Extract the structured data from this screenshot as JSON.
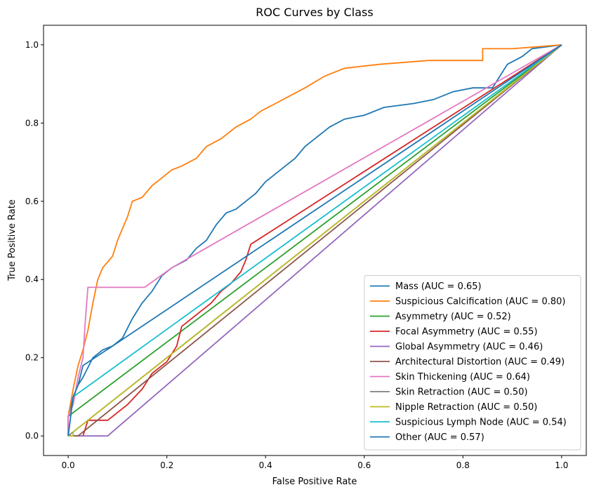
{
  "chart_data": {
    "type": "line",
    "title": "ROC Curves by Class",
    "xlabel": "False Positive Rate",
    "ylabel": "True Positive Rate",
    "xlim": [
      -0.05,
      1.05
    ],
    "ylim": [
      -0.05,
      1.05
    ],
    "xticks": [
      "0.0",
      "0.2",
      "0.4",
      "0.6",
      "0.8",
      "1.0"
    ],
    "yticks": [
      "0.0",
      "0.2",
      "0.4",
      "0.6",
      "0.8",
      "1.0"
    ],
    "grid": false,
    "legend_position": "lower-right",
    "series": [
      {
        "name": "Mass (AUC = 0.65)",
        "color": "#1f77b4",
        "points": [
          [
            0,
            0
          ],
          [
            0,
            0.05
          ],
          [
            0.01,
            0.1
          ],
          [
            0.02,
            0.13
          ],
          [
            0.03,
            0.15
          ],
          [
            0.05,
            0.2
          ],
          [
            0.07,
            0.22
          ],
          [
            0.09,
            0.23
          ],
          [
            0.11,
            0.25
          ],
          [
            0.13,
            0.3
          ],
          [
            0.15,
            0.34
          ],
          [
            0.17,
            0.37
          ],
          [
            0.19,
            0.41
          ],
          [
            0.21,
            0.43
          ],
          [
            0.24,
            0.45
          ],
          [
            0.26,
            0.48
          ],
          [
            0.28,
            0.5
          ],
          [
            0.3,
            0.54
          ],
          [
            0.32,
            0.57
          ],
          [
            0.34,
            0.58
          ],
          [
            0.36,
            0.6
          ],
          [
            0.38,
            0.62
          ],
          [
            0.4,
            0.65
          ],
          [
            0.42,
            0.67
          ],
          [
            0.44,
            0.69
          ],
          [
            0.46,
            0.71
          ],
          [
            0.48,
            0.74
          ],
          [
            0.5,
            0.76
          ],
          [
            0.53,
            0.79
          ],
          [
            0.56,
            0.81
          ],
          [
            0.6,
            0.82
          ],
          [
            0.64,
            0.84
          ],
          [
            0.7,
            0.85
          ],
          [
            0.74,
            0.86
          ],
          [
            0.78,
            0.88
          ],
          [
            0.82,
            0.89
          ],
          [
            0.86,
            0.89
          ],
          [
            0.87,
            0.91
          ],
          [
            0.89,
            0.95
          ],
          [
            0.92,
            0.97
          ],
          [
            0.94,
            0.99
          ],
          [
            1,
            1
          ]
        ]
      },
      {
        "name": "Suspicious Calcification (AUC = 0.80)",
        "color": "#ff7f0e",
        "points": [
          [
            0,
            0
          ],
          [
            0,
            0.05
          ],
          [
            0.01,
            0.12
          ],
          [
            0.02,
            0.18
          ],
          [
            0.03,
            0.22
          ],
          [
            0.04,
            0.27
          ],
          [
            0.05,
            0.34
          ],
          [
            0.06,
            0.4
          ],
          [
            0.07,
            0.43
          ],
          [
            0.09,
            0.46
          ],
          [
            0.1,
            0.5
          ],
          [
            0.11,
            0.53
          ],
          [
            0.12,
            0.56
          ],
          [
            0.13,
            0.6
          ],
          [
            0.15,
            0.61
          ],
          [
            0.17,
            0.64
          ],
          [
            0.19,
            0.66
          ],
          [
            0.21,
            0.68
          ],
          [
            0.23,
            0.69
          ],
          [
            0.26,
            0.71
          ],
          [
            0.28,
            0.74
          ],
          [
            0.31,
            0.76
          ],
          [
            0.34,
            0.79
          ],
          [
            0.37,
            0.81
          ],
          [
            0.39,
            0.83
          ],
          [
            0.42,
            0.85
          ],
          [
            0.45,
            0.87
          ],
          [
            0.48,
            0.89
          ],
          [
            0.52,
            0.92
          ],
          [
            0.56,
            0.94
          ],
          [
            0.63,
            0.95
          ],
          [
            0.73,
            0.96
          ],
          [
            0.84,
            0.96
          ],
          [
            0.84,
            0.99
          ],
          [
            0.9,
            0.99
          ],
          [
            1,
            1
          ]
        ]
      },
      {
        "name": "Asymmetry (AUC = 0.52)",
        "color": "#2ca02c",
        "points": [
          [
            0,
            0
          ],
          [
            0,
            0.05
          ],
          [
            1,
            1
          ]
        ]
      },
      {
        "name": "Focal Asymmetry (AUC = 0.55)",
        "color": "#d62728",
        "points": [
          [
            0,
            0
          ],
          [
            0.03,
            0
          ],
          [
            0.04,
            0.04
          ],
          [
            0.08,
            0.04
          ],
          [
            0.1,
            0.06
          ],
          [
            0.12,
            0.08
          ],
          [
            0.15,
            0.12
          ],
          [
            0.17,
            0.16
          ],
          [
            0.2,
            0.19
          ],
          [
            0.22,
            0.23
          ],
          [
            0.23,
            0.28
          ],
          [
            0.25,
            0.3
          ],
          [
            0.27,
            0.32
          ],
          [
            0.29,
            0.34
          ],
          [
            0.31,
            0.37
          ],
          [
            0.33,
            0.39
          ],
          [
            0.35,
            0.42
          ],
          [
            0.36,
            0.45
          ],
          [
            0.37,
            0.49
          ],
          [
            1,
            1
          ]
        ]
      },
      {
        "name": "Global Asymmetry (AUC = 0.46)",
        "color": "#9467bd",
        "points": [
          [
            0,
            0
          ],
          [
            0.08,
            0
          ],
          [
            1,
            1
          ]
        ]
      },
      {
        "name": "Architectural Distortion (AUC = 0.49)",
        "color": "#8c564b",
        "points": [
          [
            0,
            0
          ],
          [
            0.02,
            0
          ],
          [
            1,
            1
          ]
        ]
      },
      {
        "name": "Skin Thickening (AUC = 0.64)",
        "color": "#e377c2",
        "points": [
          [
            0,
            0
          ],
          [
            0,
            0.05
          ],
          [
            0.01,
            0.08
          ],
          [
            0.02,
            0.15
          ],
          [
            0.03,
            0.2
          ],
          [
            0.035,
            0.3
          ],
          [
            0.04,
            0.38
          ],
          [
            0.155,
            0.38
          ],
          [
            0.21,
            0.43
          ],
          [
            1,
            1
          ]
        ]
      },
      {
        "name": "Skin Retraction (AUC = 0.50)",
        "color": "#7f7f7f",
        "points": [
          [
            0,
            0
          ],
          [
            1,
            1
          ]
        ]
      },
      {
        "name": "Nipple Retraction (AUC = 0.50)",
        "color": "#bcbd22",
        "points": [
          [
            0,
            0
          ],
          [
            0.01,
            0
          ],
          [
            0.01,
            0.01
          ],
          [
            1,
            1
          ]
        ]
      },
      {
        "name": "Suspicious Lymph Node (AUC = 0.54)",
        "color": "#17becf",
        "points": [
          [
            0,
            0
          ],
          [
            0.01,
            0.1
          ],
          [
            1,
            1
          ]
        ]
      },
      {
        "name": "Other (AUC = 0.57)",
        "color": "#1f77b4",
        "points": [
          [
            0,
            0
          ],
          [
            0.01,
            0.1
          ],
          [
            0.02,
            0.13
          ],
          [
            0.03,
            0.18
          ],
          [
            0.09,
            0.23
          ],
          [
            1,
            1
          ]
        ]
      }
    ]
  }
}
